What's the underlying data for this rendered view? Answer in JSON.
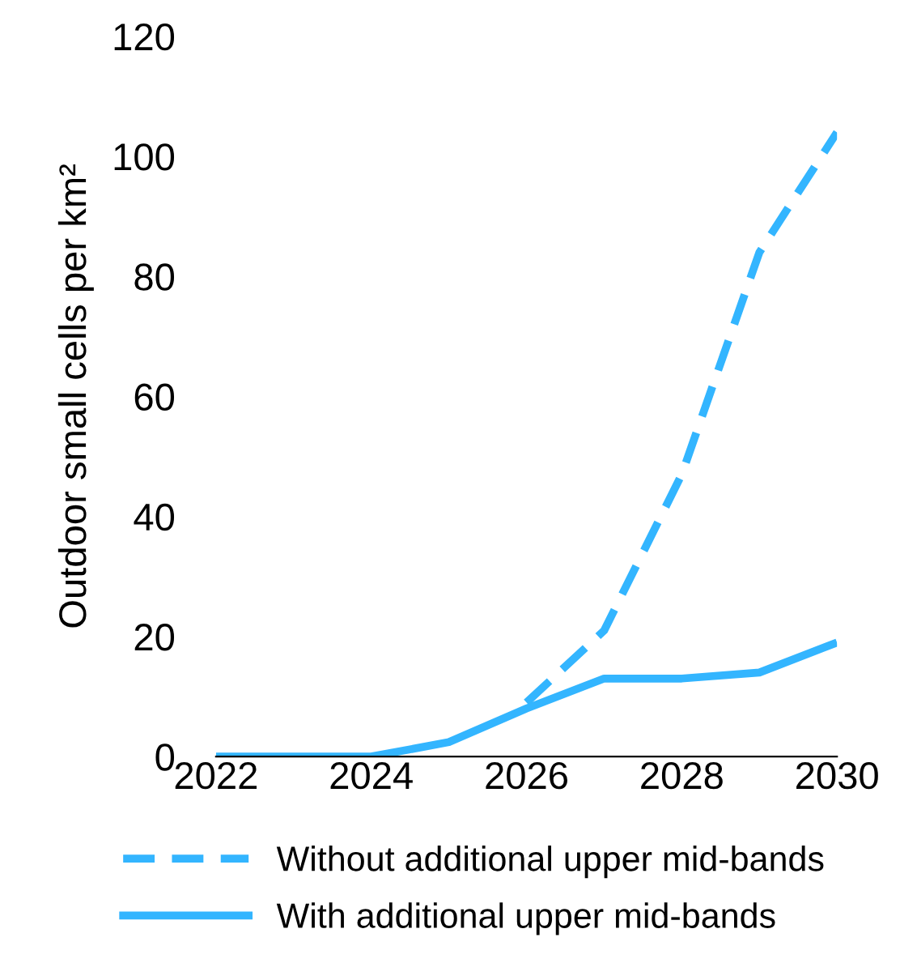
{
  "chart_data": {
    "type": "line",
    "ylabel": "Outdoor small cells per km²",
    "x": [
      2022,
      2023,
      2024,
      2025,
      2026,
      2027,
      2028,
      2029,
      2030
    ],
    "series": [
      {
        "name": "Without additional upper mid-bands",
        "color": "#33b5ff",
        "line_style": "dashed",
        "x": [
          2026,
          2027,
          2028,
          2029,
          2030
        ],
        "values": [
          9,
          21,
          47,
          84,
          104
        ]
      },
      {
        "name": "With additional upper mid-bands",
        "color": "#33b5ff",
        "line_style": "solid",
        "values": [
          0,
          0,
          0,
          2.4,
          8,
          13,
          13,
          14,
          19
        ]
      }
    ],
    "xlim": [
      2022,
      2030
    ],
    "xticks": [
      2022,
      2024,
      2026,
      2028,
      2030
    ],
    "ylim": [
      0,
      120
    ],
    "yticks": [
      0,
      20,
      40,
      60,
      80,
      100,
      120
    ],
    "grid": false,
    "legend": "bottom",
    "marker": "none"
  }
}
